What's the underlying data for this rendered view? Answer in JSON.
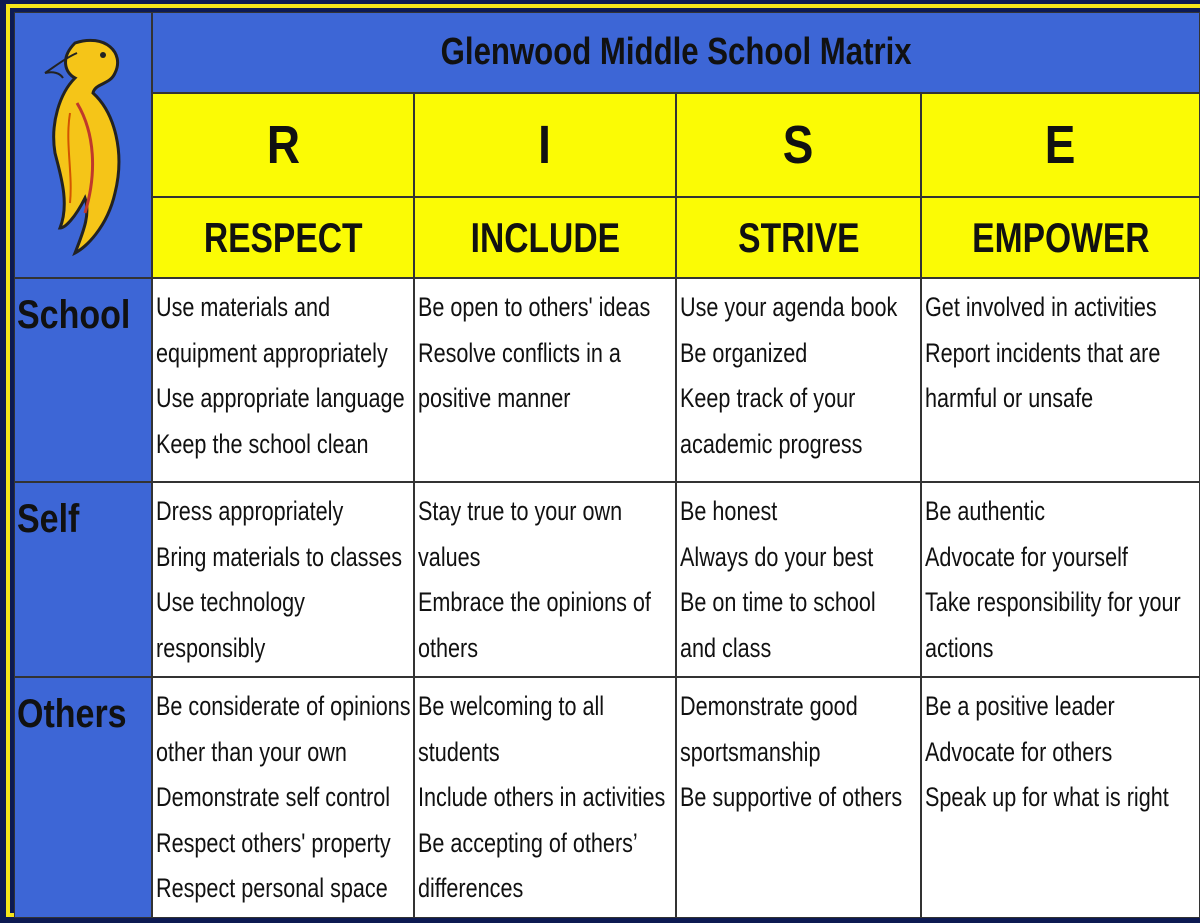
{
  "title": "Glenwood Middle School Matrix",
  "columns": [
    {
      "letter": "R",
      "word": "RESPECT"
    },
    {
      "letter": "I",
      "word": "INCLUDE"
    },
    {
      "letter": "S",
      "word": "STRIVE"
    },
    {
      "letter": "E",
      "word": "EMPOWER"
    }
  ],
  "rows": [
    {
      "label": "School",
      "cells": [
        [
          "Use materials and",
          "equipment appropriately",
          "Use appropriate language",
          "Keep the school clean"
        ],
        [
          "Be open to others' ideas",
          "Resolve conflicts in a",
          "positive manner"
        ],
        [
          "Use your agenda book",
          "Be organized",
          "Keep track of your",
          "academic progress"
        ],
        [
          "Get involved in activities",
          "Report incidents that are",
          "harmful or unsafe"
        ]
      ]
    },
    {
      "label": "Self",
      "cells": [
        [
          "Dress appropriately",
          "Bring materials to classes",
          "Use technology",
          "responsibly"
        ],
        [
          "Stay true to your own",
          "values",
          "Embrace the opinions of",
          "others"
        ],
        [
          "Be honest",
          "Always do your best",
          "Be on time to school",
          "and class"
        ],
        [
          "Be authentic",
          "Advocate for yourself",
          "Take responsibility for your",
          "actions"
        ]
      ]
    },
    {
      "label": "Others",
      "cells": [
        [
          "Be considerate of opinions",
          "other than your own",
          "Demonstrate self control",
          "Respect others' property",
          "Respect personal space"
        ],
        [
          "Be welcoming to all",
          "students",
          "Include others in activities",
          "Be accepting of others’",
          "differences"
        ],
        [
          "Demonstrate good",
          "sportsmanship",
          "Be supportive of others"
        ],
        [
          "Be a positive leader",
          "Advocate for others",
          "Speak up for what is right"
        ]
      ]
    }
  ]
}
